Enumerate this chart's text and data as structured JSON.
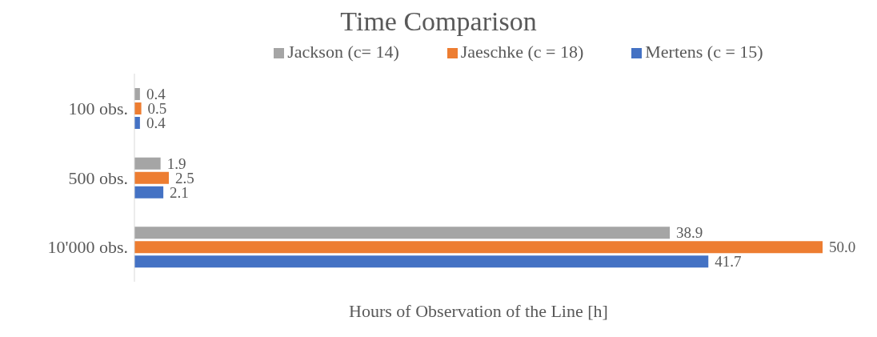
{
  "chart_data": {
    "type": "bar",
    "orientation": "horizontal",
    "title": "Time Comparison",
    "xlabel": "Hours of Observation of the Line [h]",
    "categories": [
      "100 obs.",
      "500 obs.",
      "10'000 obs."
    ],
    "legend": "top",
    "grid": false,
    "series": [
      {
        "name": "Jackson (c= 14)",
        "color": "#a5a5a5",
        "values": [
          0.4,
          1.9,
          38.9
        ],
        "value_labels": [
          "0.4",
          "1.9",
          "38.9"
        ]
      },
      {
        "name": "Jaeschke (c = 18)",
        "color": "#ed7d31",
        "values": [
          0.5,
          2.5,
          50.0
        ],
        "value_labels": [
          "0.5",
          "2.5",
          "50.0"
        ]
      },
      {
        "name": "Mertens (c = 15)",
        "color": "#4472c4",
        "values": [
          0.4,
          2.1,
          41.7
        ],
        "value_labels": [
          "0.4",
          "2.1",
          "41.7"
        ]
      }
    ]
  }
}
